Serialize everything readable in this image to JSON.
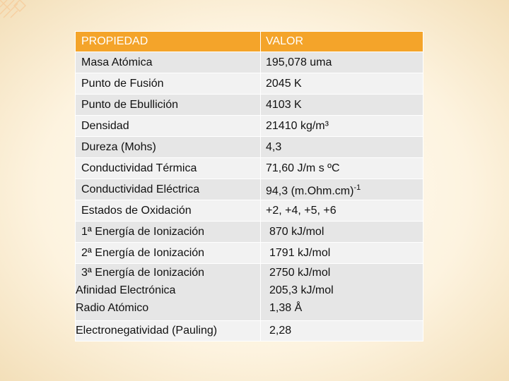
{
  "header": {
    "col1": "PROPIEDAD",
    "col2": "VALOR"
  },
  "rows": [
    {
      "prop": "Masa Atómica",
      "val": "195,078 uma"
    },
    {
      "prop": "Punto de Fusión",
      "val": "2045 K"
    },
    {
      "prop": "Punto de Ebullición",
      "val": "4103 K"
    },
    {
      "prop": "Densidad",
      "val": "21410 kg/m³"
    },
    {
      "prop": "Dureza (Mohs)",
      "val": "4,3"
    },
    {
      "prop": "Conductividad Térmica",
      "val": "71,60 J/m s ºC"
    },
    {
      "prop": "Conductividad Eléctrica",
      "val": "94,3 (m.Ohm.cm)",
      "sup": "-1"
    },
    {
      "prop": "Estados de Oxidación",
      "val": "+2, +4, +5, +6"
    },
    {
      "prop": "1ª Energía de Ionización",
      "val": "870 kJ/mol"
    },
    {
      "prop": "2ª Energía de Ionización",
      "val": "1791 kJ/mol"
    },
    {
      "prop": "3ª Energía de Ionización",
      "val": "2750 kJ/mol"
    },
    {
      "prop": "Afinidad Electrónica",
      "val": "205,3 kJ/mol"
    },
    {
      "prop": "Radio Atómico",
      "val": "1,38 Å"
    },
    {
      "prop": "Electronegatividad (Pauling)",
      "val": "2,28"
    }
  ],
  "colors": {
    "header": "#f4a42a",
    "row_dark": "#e6e6e6",
    "row_light": "#f2f2f2",
    "accent": "#f4c48a"
  }
}
